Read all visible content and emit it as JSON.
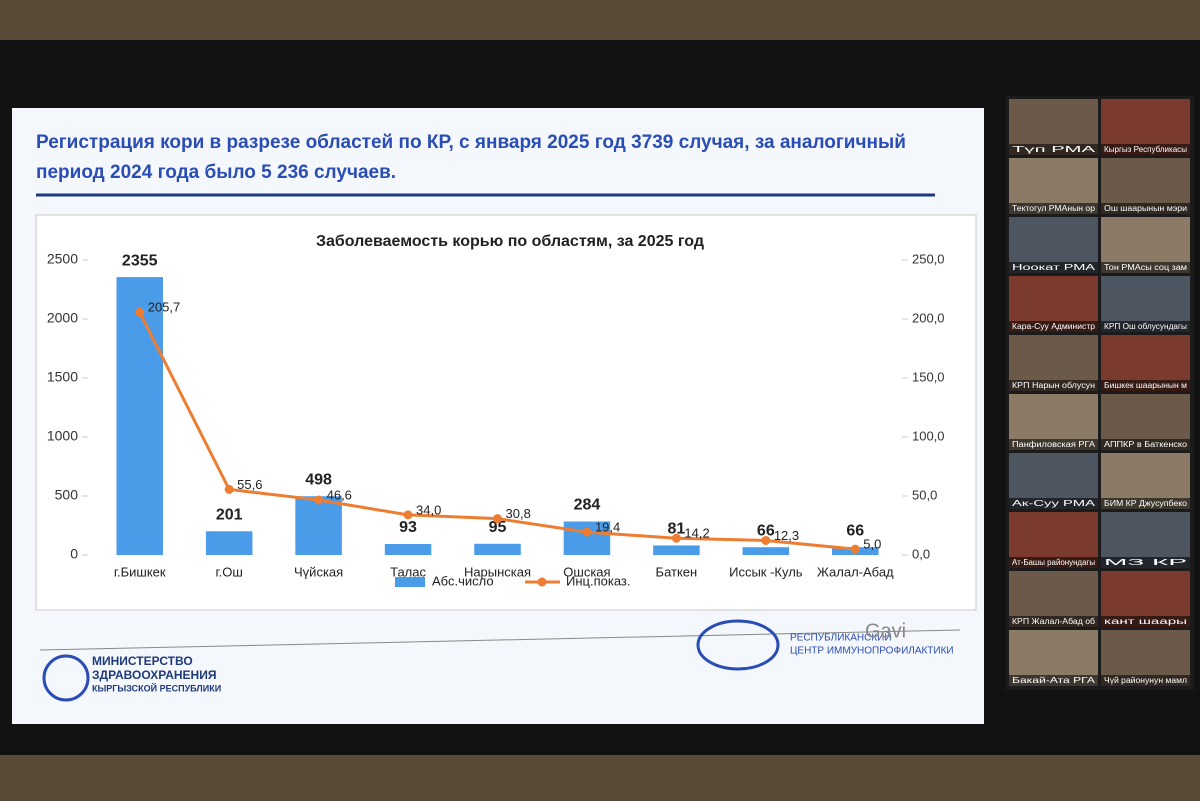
{
  "slide": {
    "title_lines": [
      "Регистрация кори в разрезе областей по КР, с января  2025 год  3739 случая, за аналогичный",
      "период 2024 года было  5 236 случаев."
    ],
    "ministry": [
      "МИНИСТЕРСТВО",
      "ЗДРАВООХРАНЕНИЯ",
      "КЫРГЫЗСКОЙ РЕСПУБЛИКИ"
    ],
    "center": [
      "РЕСПУБЛИКАНСКИЙ",
      "ЦЕНТР ИММУНОПРОФИЛАКТИКИ"
    ],
    "partner": "Gavi"
  },
  "chart_data": {
    "type": "bar-line",
    "title": "Заболеваемость корью по областям, за 2025 год",
    "categories": [
      "г.Бишкек",
      "г.Ош",
      "Чүйская",
      "Талас",
      "Нарынская",
      "Ошская",
      "Баткен",
      "Иссык -Куль",
      "Жалал-Абад"
    ],
    "series": [
      {
        "name": "Абс.число",
        "type": "bar",
        "color": "#4a9be8",
        "values": [
          2355,
          201,
          498,
          93,
          95,
          284,
          81,
          66,
          66
        ]
      },
      {
        "name": "Инц.показ.",
        "type": "line",
        "axis": "y2",
        "color": "#ed7d31",
        "values": [
          205.7,
          55.6,
          46.6,
          34.0,
          30.8,
          19.4,
          14.2,
          12.3,
          5.0
        ],
        "value_labels": [
          "205,7",
          "55,6",
          "46,6",
          "34,0",
          "30,8",
          "19,4",
          "14,2",
          "12,3",
          "5,0"
        ]
      }
    ],
    "ylim": [
      0,
      2500
    ],
    "yticks": [
      0,
      500,
      1000,
      1500,
      2000,
      2500
    ],
    "y2lim": [
      0,
      250
    ],
    "y2ticks": [
      {
        "value": 0,
        "label": "0,0"
      },
      {
        "value": 50,
        "label": "50,0"
      },
      {
        "value": 100,
        "label": "100,0"
      },
      {
        "value": 150,
        "label": "150,0"
      },
      {
        "value": 200,
        "label": "200,0"
      },
      {
        "value": 250,
        "label": "250,0"
      }
    ],
    "legend": "bottom"
  },
  "participants": [
    "Түп РМА",
    "Кыргыз Республикасы",
    "Тектогул РМАнын ор",
    "Ош шаарынын мэри",
    "Ноокат РМА",
    "Тон РМАсы соц зам",
    "Кара-Суу Администр",
    "КРП Ош облусундагы",
    "КРП Нарын облусун",
    "Бишкек шаарынын м",
    "Панфиловская РГА",
    "АППКР в Баткенско",
    "Ак-Суу РМА",
    "БИМ КР Джусупбеко",
    "Ат-Башы районундагы",
    "МЗ КР",
    "КРП Жалал-Абад об",
    "кант шаары",
    "Бакай-Ата РГА",
    "Чүй районунун мамл"
  ]
}
